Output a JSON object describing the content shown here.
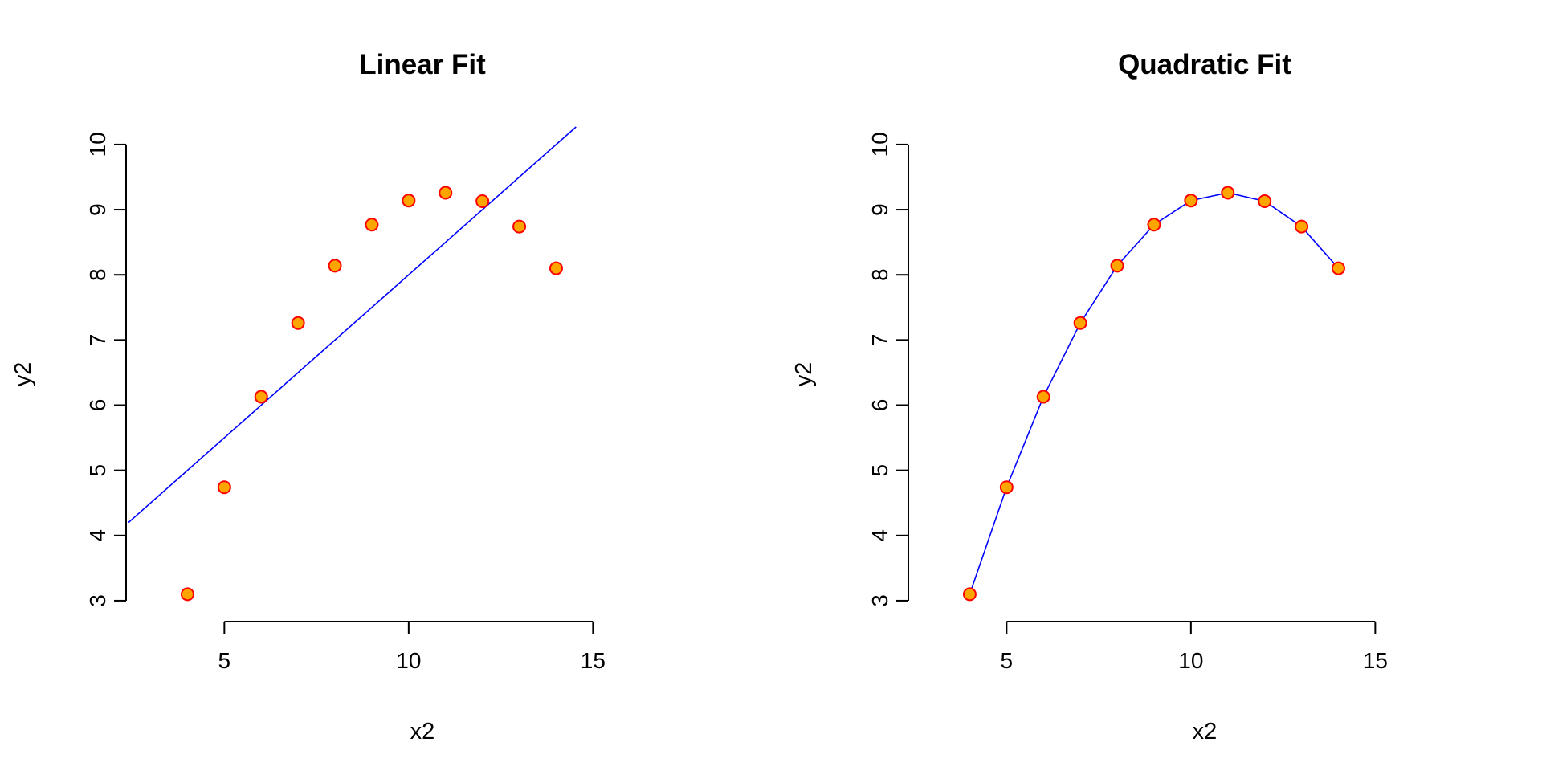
{
  "chart_data": [
    {
      "type": "scatter",
      "title": "Linear Fit",
      "xlabel": "x2",
      "ylabel": "y2",
      "xlim": [
        2.4,
        14.6
      ],
      "ylim": [
        2.95,
        10.27
      ],
      "xticks": [
        5,
        10,
        15
      ],
      "yticks": [
        3,
        4,
        5,
        6,
        7,
        8,
        9,
        10
      ],
      "grid": false,
      "points": {
        "x": [
          4,
          5,
          6,
          7,
          8,
          9,
          10,
          11,
          12,
          13,
          14
        ],
        "y": [
          3.1,
          4.74,
          6.13,
          7.26,
          8.14,
          8.77,
          9.14,
          9.26,
          9.13,
          8.74,
          8.1
        ],
        "fill": "#ffa500",
        "stroke": "#ff0000"
      },
      "fit": {
        "kind": "linear",
        "intercept": 3.0,
        "slope": 0.5,
        "color": "#0000ff"
      }
    },
    {
      "type": "scatter",
      "title": "Quadratic Fit",
      "xlabel": "x2",
      "ylabel": "y2",
      "xlim": [
        2.4,
        14.6
      ],
      "ylim": [
        2.95,
        10.27
      ],
      "xticks": [
        5,
        10,
        15
      ],
      "yticks": [
        3,
        4,
        5,
        6,
        7,
        8,
        9,
        10
      ],
      "grid": false,
      "points": {
        "x": [
          4,
          5,
          6,
          7,
          8,
          9,
          10,
          11,
          12,
          13,
          14
        ],
        "y": [
          3.1,
          4.74,
          6.13,
          7.26,
          8.14,
          8.77,
          9.14,
          9.26,
          9.13,
          8.74,
          8.1
        ],
        "fill": "#ffa500",
        "stroke": "#ff0000"
      },
      "fit": {
        "kind": "quadratic",
        "x": [
          4,
          5,
          6,
          7,
          8,
          9,
          10,
          11,
          12,
          13,
          14
        ],
        "y": [
          3.1,
          4.74,
          6.13,
          7.26,
          8.14,
          8.77,
          9.14,
          9.26,
          9.13,
          8.74,
          8.1
        ],
        "color": "#0000ff"
      }
    }
  ]
}
